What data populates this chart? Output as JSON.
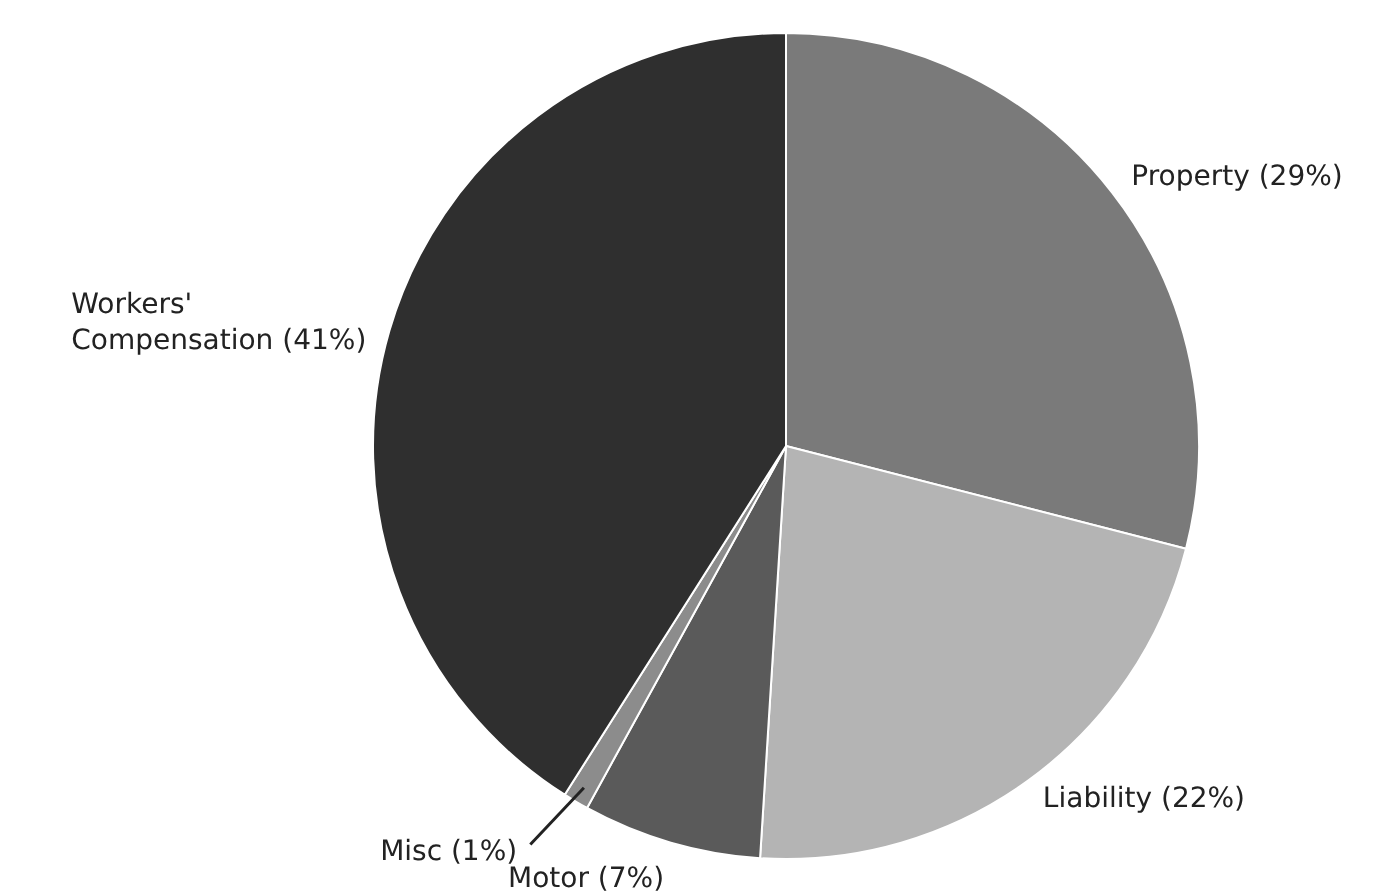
{
  "chart_data": {
    "type": "pie",
    "categories": [
      "Property",
      "Liability",
      "Motor",
      "Misc",
      "Workers' Compensation"
    ],
    "values": [
      29,
      22,
      7,
      1,
      41
    ],
    "colors": [
      "#7a7a7a",
      "#b4b4b4",
      "#5a5a5a",
      "#8c8c8c",
      "#2f2f2f"
    ],
    "value_labels": [
      "(29%)",
      "(22%)",
      "(7%)",
      "(1%)",
      "(41%)"
    ],
    "legend": false
  }
}
